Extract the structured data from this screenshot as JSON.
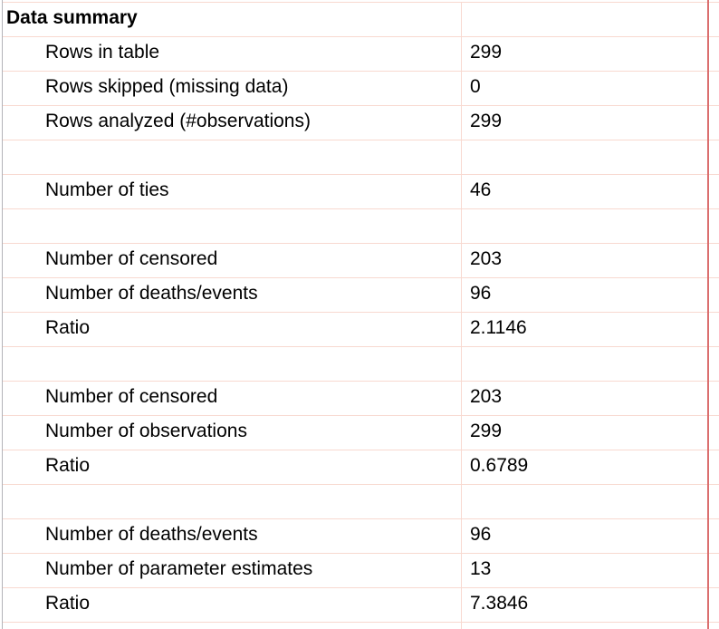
{
  "table": {
    "title": "Data summary",
    "columns": [
      "label",
      "value"
    ],
    "rows": [
      {
        "label": "Rows in table",
        "value": "299"
      },
      {
        "label": "Rows skipped (missing data)",
        "value": "0"
      },
      {
        "label": "Rows analyzed (#observations)",
        "value": "299"
      },
      {
        "label": "",
        "value": ""
      },
      {
        "label": "Number of ties",
        "value": "46"
      },
      {
        "label": "",
        "value": ""
      },
      {
        "label": "Number of censored",
        "value": "203"
      },
      {
        "label": "Number of deaths/events",
        "value": "96"
      },
      {
        "label": "Ratio",
        "value": "2.1146"
      },
      {
        "label": "",
        "value": ""
      },
      {
        "label": "Number of censored",
        "value": "203"
      },
      {
        "label": "Number of observations",
        "value": "299"
      },
      {
        "label": "Ratio",
        "value": "0.6789"
      },
      {
        "label": "",
        "value": ""
      },
      {
        "label": "Number of deaths/events",
        "value": "96"
      },
      {
        "label": "Number of parameter estimates",
        "value": "13"
      },
      {
        "label": "Ratio",
        "value": "7.3846"
      }
    ]
  },
  "colors": {
    "gridline": "#f8d9d0",
    "sheet_edge_line": "#b3b3b8",
    "range_border": "#db6f6f",
    "text": "#000000",
    "background": "#ffffff"
  }
}
